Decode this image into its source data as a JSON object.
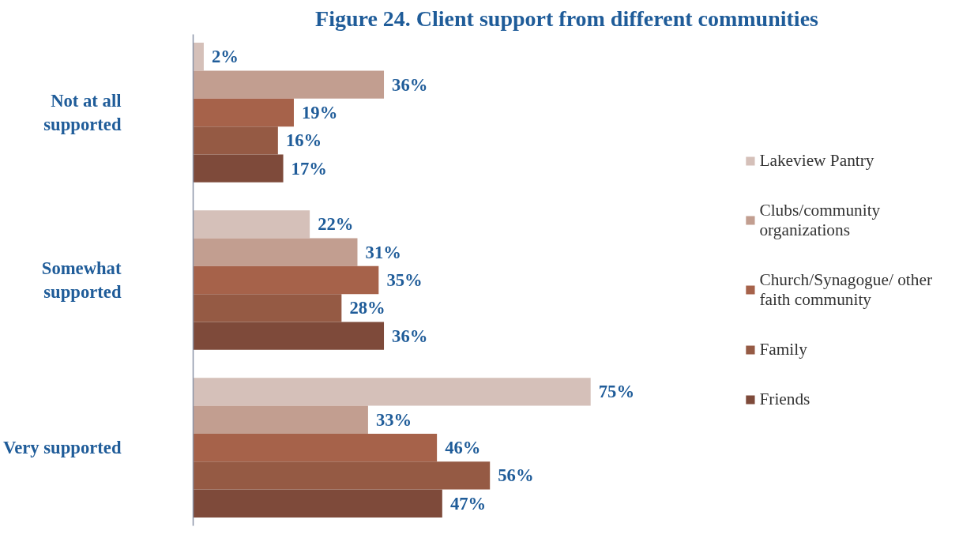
{
  "chart_data": {
    "type": "bar",
    "orientation": "horizontal",
    "title": "Figure 24. Client support from different communities",
    "categories": [
      "Not at all\nsupported",
      "Somewhat\nsupported",
      "Very supported"
    ],
    "series": [
      {
        "name": "Lakeview Pantry",
        "color": "#d5c0b9",
        "values": [
          2,
          22,
          75
        ],
        "value_labels": [
          "2%",
          "22%",
          "75%"
        ]
      },
      {
        "name": "Clubs/community\norganizations",
        "color": "#c29e90",
        "values": [
          36,
          31,
          33
        ],
        "value_labels": [
          "36%",
          "31%",
          "33%"
        ]
      },
      {
        "name": "Church/Synagogue/ other\nfaith community",
        "color": "#a6624a",
        "values": [
          19,
          35,
          46
        ],
        "value_labels": [
          "19%",
          "35%",
          "46%"
        ]
      },
      {
        "name": "Family",
        "color": "#955a44",
        "values": [
          16,
          28,
          56
        ],
        "value_labels": [
          "16%",
          "28%",
          "56%"
        ]
      },
      {
        "name": "Friends",
        "color": "#7e4a3a",
        "values": [
          17,
          36,
          47
        ],
        "value_labels": [
          "17%",
          "36%",
          "47%"
        ]
      }
    ],
    "legend": "right",
    "grid": false
  }
}
